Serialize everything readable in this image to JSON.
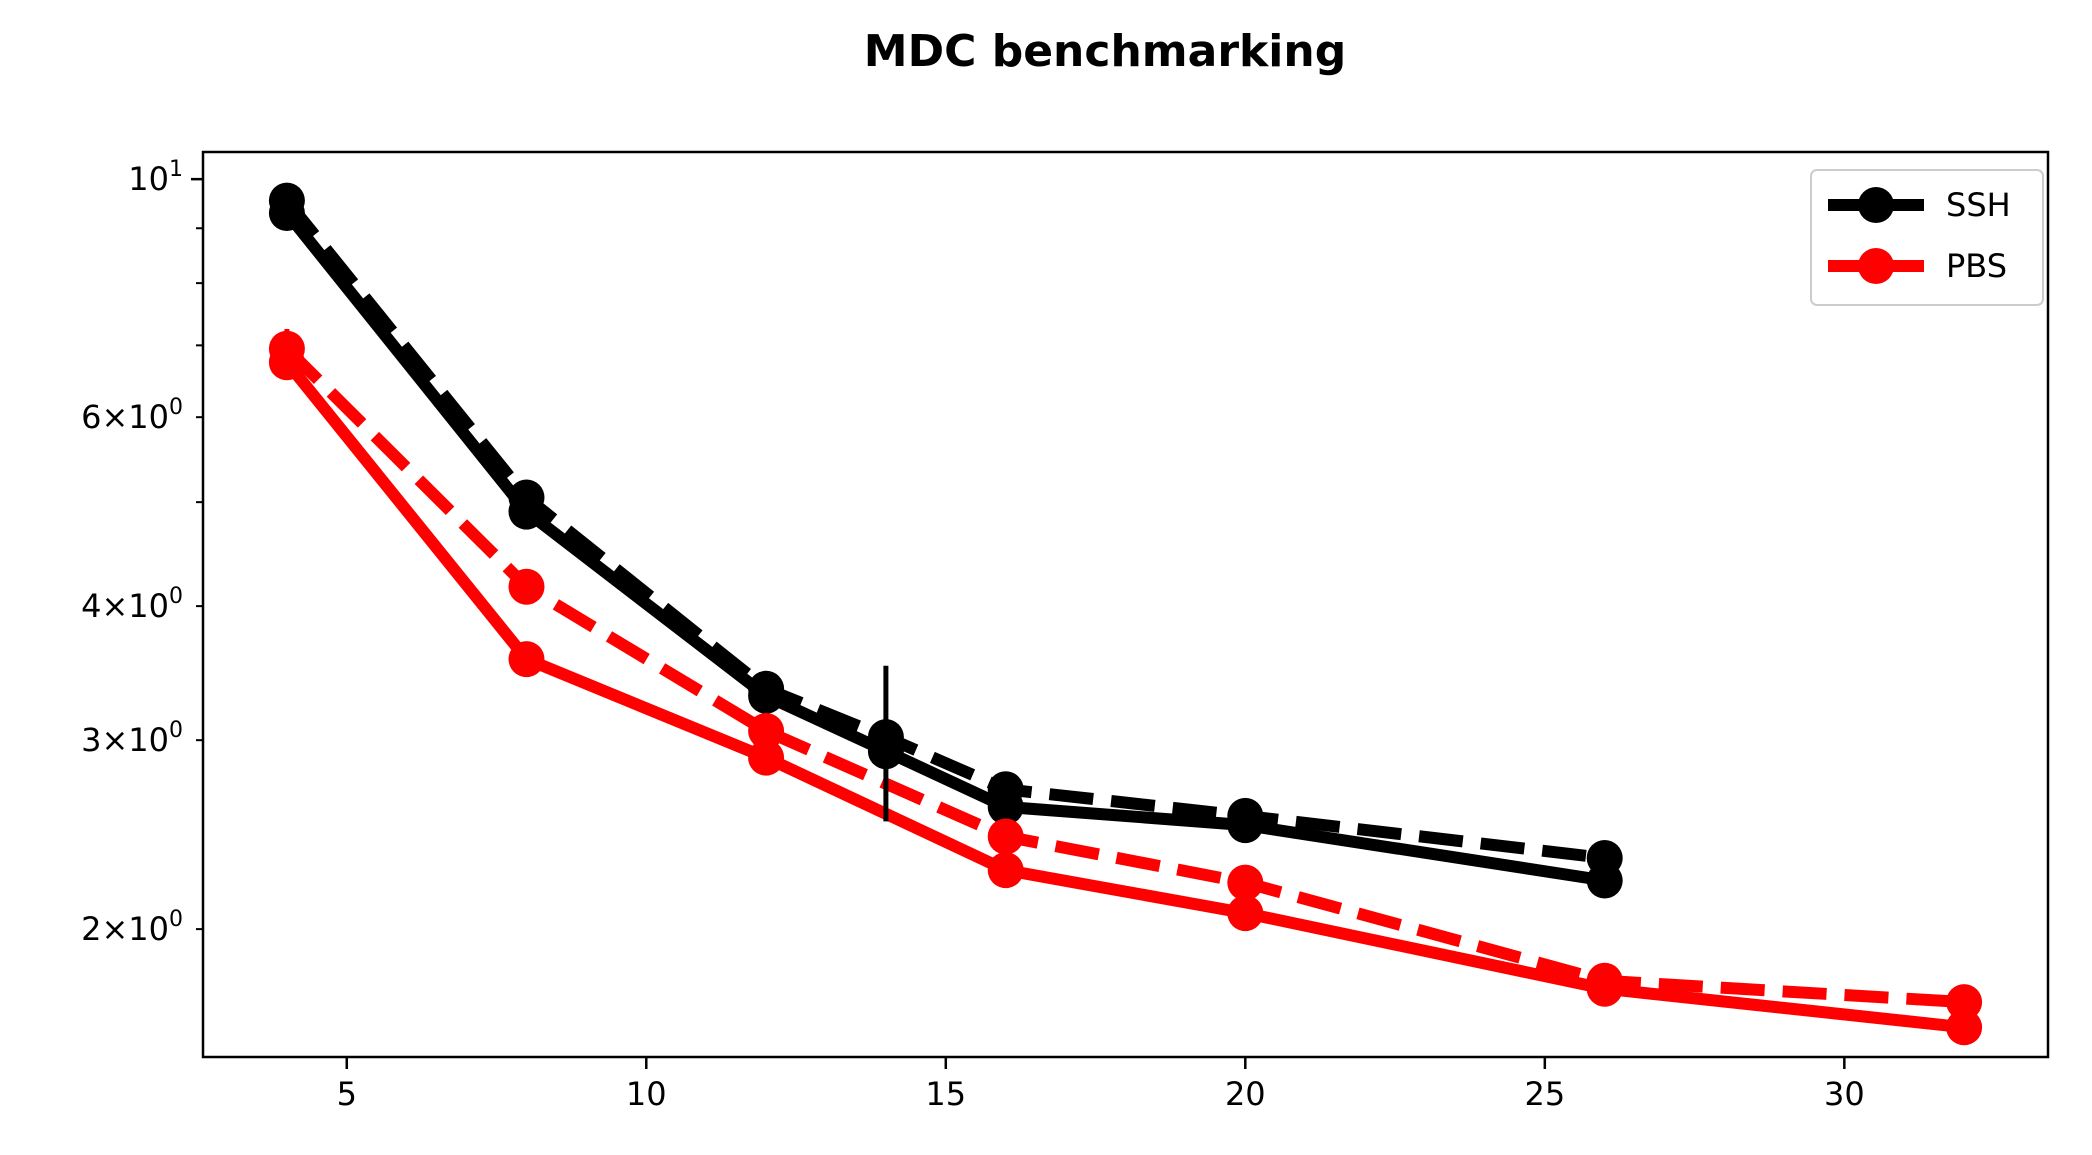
{
  "chart_data": {
    "type": "line",
    "title": "MDC benchmarking",
    "xlabel": "",
    "ylabel": "",
    "xlim": [
      2.6,
      33.4
    ],
    "ylim": [
      1.52,
      10.6
    ],
    "yscale": "log",
    "grid": false,
    "legend_position": "top-right",
    "x_ticks": [
      {
        "value": 5,
        "label": "5"
      },
      {
        "value": 10,
        "label": "10"
      },
      {
        "value": 15,
        "label": "15"
      },
      {
        "value": 20,
        "label": "20"
      },
      {
        "value": 25,
        "label": "25"
      },
      {
        "value": 30,
        "label": "30"
      }
    ],
    "y_major_ticks": [
      {
        "value": 10,
        "base": "10",
        "exp": "1"
      }
    ],
    "y_minor_ticks": [
      {
        "value": 2,
        "mant": "2",
        "base": "10",
        "exp": "0",
        "labeled": true
      },
      {
        "value": 3,
        "mant": "3",
        "base": "10",
        "exp": "0",
        "labeled": true
      },
      {
        "value": 4,
        "mant": "4",
        "base": "10",
        "exp": "0",
        "labeled": true
      },
      {
        "value": 5,
        "labeled": false
      },
      {
        "value": 6,
        "mant": "6",
        "base": "10",
        "exp": "0",
        "labeled": true
      },
      {
        "value": 7,
        "labeled": false
      },
      {
        "value": 8,
        "labeled": false
      },
      {
        "value": 9,
        "labeled": false
      }
    ],
    "legend": [
      {
        "name": "SSH",
        "color": "#000000"
      },
      {
        "name": "PBS",
        "color": "#ff0000"
      }
    ],
    "series": [
      {
        "group": "SSH",
        "style": "solid",
        "color": "#000000",
        "x": [
          4,
          8,
          12,
          14,
          16,
          20,
          26
        ],
        "y": [
          9.3,
          4.9,
          3.3,
          2.93,
          2.6,
          2.5,
          2.22
        ],
        "err": [
          0,
          0,
          0,
          0,
          0,
          0,
          0
        ]
      },
      {
        "group": "SSH",
        "style": "dashed",
        "color": "#000000",
        "x": [
          4,
          8,
          12,
          14,
          16,
          20,
          26
        ],
        "y": [
          9.55,
          5.05,
          3.35,
          3.02,
          2.7,
          2.55,
          2.33
        ],
        "err": [
          0,
          0,
          0,
          0.5,
          0,
          0,
          0
        ]
      },
      {
        "group": "PBS",
        "style": "solid",
        "color": "#ff0000",
        "x": [
          4,
          8,
          12,
          16,
          20,
          26,
          32
        ],
        "y": [
          6.75,
          3.57,
          2.89,
          2.27,
          2.07,
          1.76,
          1.62
        ],
        "err": [
          0,
          0,
          0,
          0,
          0,
          0,
          0
        ]
      },
      {
        "group": "PBS",
        "style": "dashed",
        "color": "#ff0000",
        "x": [
          4,
          8,
          12,
          16,
          20,
          26,
          32
        ],
        "y": [
          6.95,
          4.17,
          3.06,
          2.44,
          2.21,
          1.79,
          1.71
        ],
        "err": [
          0.3,
          0,
          0,
          0,
          0,
          0,
          0
        ]
      }
    ]
  }
}
